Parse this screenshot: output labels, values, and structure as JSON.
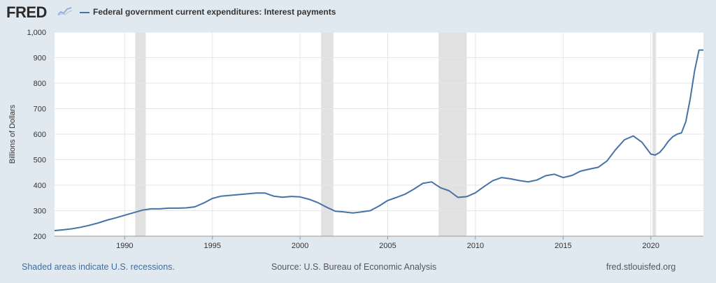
{
  "header": {
    "logo_text": "FRED",
    "logo_icon": "line-graph-icon",
    "series_title": "Federal government current expenditures: Interest payments"
  },
  "footer": {
    "recession_note": "Shaded areas indicate U.S. recessions.",
    "source": "Source: U.S. Bureau of Economic Analysis",
    "site": "fred.stlouisfed.org"
  },
  "colors": {
    "line": "#4572a7",
    "recession": "#e1e1e1",
    "background": "#e1e9f0",
    "plot": "#ffffff"
  },
  "chart_data": {
    "type": "line",
    "title": "",
    "xlabel": "",
    "ylabel": "Billions of Dollars",
    "xlim": [
      1986.0,
      2023.0
    ],
    "ylim": [
      200,
      1000
    ],
    "yticks": [
      200,
      300,
      400,
      500,
      600,
      700,
      800,
      900,
      1000
    ],
    "ytick_labels": [
      "200",
      "300",
      "400",
      "500",
      "600",
      "700",
      "800",
      "900",
      "1,000"
    ],
    "xticks": [
      1990,
      1995,
      2000,
      2005,
      2010,
      2015,
      2020
    ],
    "xtick_labels": [
      "1990",
      "1995",
      "2000",
      "2005",
      "2010",
      "2015",
      "2020"
    ],
    "grid": true,
    "recessions": [
      [
        1990.6,
        1991.2
      ],
      [
        2001.2,
        2001.9
      ],
      [
        2007.9,
        2009.5
      ],
      [
        2020.1,
        2020.3
      ]
    ],
    "series": [
      {
        "name": "Federal government current expenditures: Interest payments",
        "x": [
          1986.0,
          1986.5,
          1987.0,
          1987.5,
          1988.0,
          1988.5,
          1989.0,
          1989.5,
          1990.0,
          1990.5,
          1991.0,
          1991.5,
          1992.0,
          1992.5,
          1993.0,
          1993.5,
          1994.0,
          1994.5,
          1995.0,
          1995.5,
          1996.0,
          1996.5,
          1997.0,
          1997.5,
          1998.0,
          1998.5,
          1999.0,
          1999.5,
          2000.0,
          2000.5,
          2001.0,
          2001.5,
          2002.0,
          2002.5,
          2003.0,
          2003.5,
          2004.0,
          2004.5,
          2005.0,
          2005.5,
          2006.0,
          2006.5,
          2007.0,
          2007.5,
          2008.0,
          2008.5,
          2009.0,
          2009.5,
          2010.0,
          2010.5,
          2011.0,
          2011.5,
          2012.0,
          2012.5,
          2013.0,
          2013.5,
          2014.0,
          2014.5,
          2015.0,
          2015.5,
          2016.0,
          2016.5,
          2017.0,
          2017.5,
          2018.0,
          2018.5,
          2019.0,
          2019.5,
          2020.0,
          2020.25,
          2020.5,
          2020.75,
          2021.0,
          2021.25,
          2021.5,
          2021.75,
          2022.0,
          2022.25,
          2022.5,
          2022.75,
          2023.0
        ],
        "values": [
          222,
          225,
          229,
          235,
          243,
          252,
          263,
          272,
          282,
          292,
          302,
          307,
          307,
          310,
          310,
          311,
          315,
          330,
          348,
          357,
          360,
          363,
          366,
          369,
          369,
          357,
          353,
          356,
          354,
          345,
          332,
          314,
          298,
          295,
          291,
          295,
          300,
          318,
          340,
          352,
          365,
          385,
          407,
          413,
          390,
          378,
          352,
          355,
          370,
          395,
          418,
          430,
          425,
          418,
          413,
          420,
          437,
          443,
          430,
          438,
          455,
          463,
          470,
          495,
          540,
          578,
          593,
          568,
          522,
          518,
          528,
          548,
          572,
          590,
          600,
          605,
          650,
          740,
          850,
          930,
          930
        ]
      }
    ]
  }
}
